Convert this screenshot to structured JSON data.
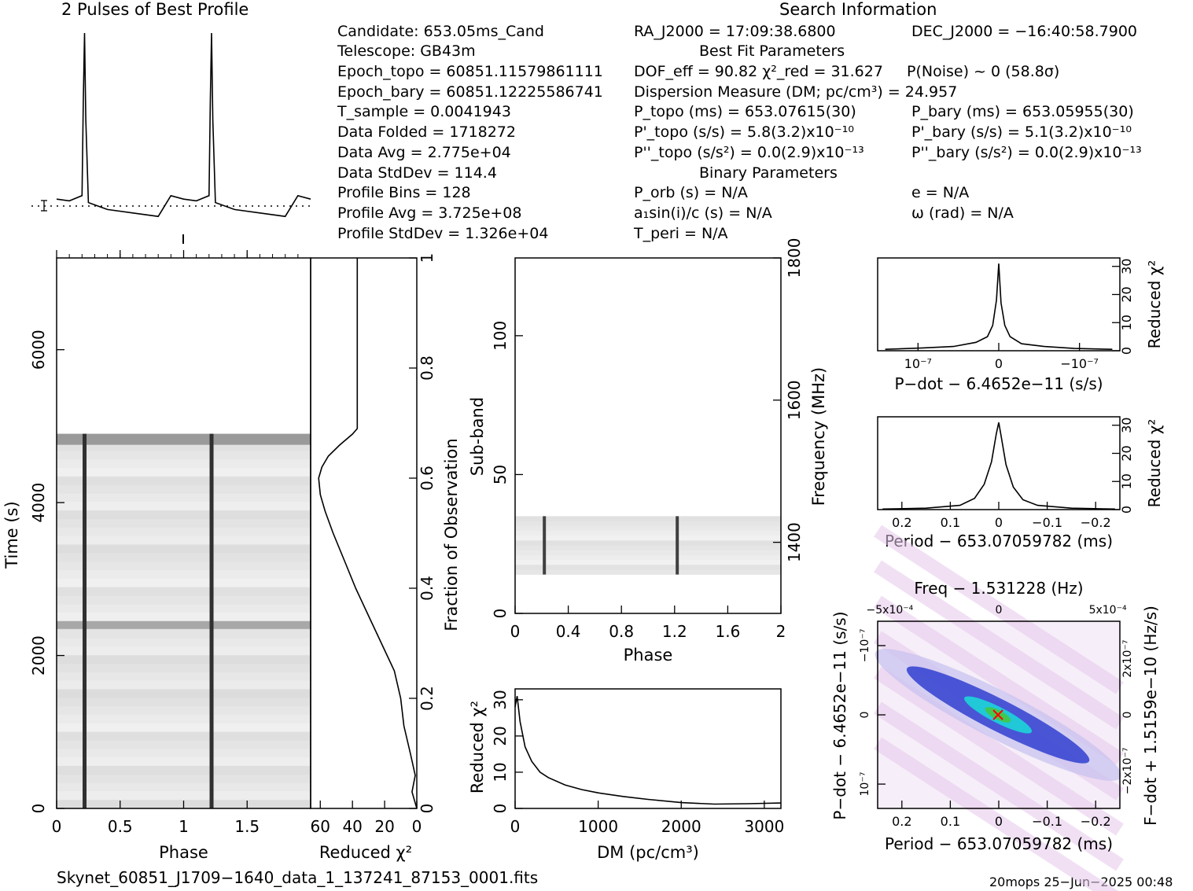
{
  "profile_title": "2 Pulses of Best Profile",
  "search_title": "Search Information",
  "candidate_info": {
    "candidate": "Candidate:  653.05ms_Cand",
    "telescope": "Telescope:  GB43m",
    "epoch_topo": "Epoch_topo = 60851.11579861111",
    "epoch_bary": "Epoch_bary = 60851.12225586741",
    "t_sample": "T_sample   =  0.0041943",
    "data_folded": "Data Folded   =  1718272",
    "data_avg": "Data Avg      =  2.775e+04",
    "data_stddev": "Data StdDev   =  114.4",
    "profile_bins": "Profile Bins  =  128",
    "profile_avg": "Profile Avg   =  3.725e+08",
    "profile_stddev": "Profile StdDev =  1.326e+04"
  },
  "fit_info": {
    "ra": "RA_J2000 = 17:09:38.6800",
    "dec": "DEC_J2000 = −16:40:58.7900",
    "best_fit_header": "Best Fit Parameters",
    "dof": "DOF_eff = 90.82  χ²_red = 31.627",
    "p_noise": "P(Noise) ~ 0   (58.8σ)",
    "dm": "Dispersion Measure (DM; pc/cm³) = 24.957",
    "p_topo": "P_topo (ms) =  653.07615(30)",
    "p_bary": "P_bary (ms) =  653.05955(30)",
    "pd_topo": "P'_topo (s/s) =  5.8(3.2)x10⁻¹⁰",
    "pd_bary": "P'_bary (s/s) =  5.1(3.2)x10⁻¹⁰",
    "pdd_topo": "P''_topo (s/s²) = 0.0(2.9)x10⁻¹³",
    "pdd_bary": "P''_bary (s/s²) = 0.0(2.9)x10⁻¹³",
    "binary_header": "Binary Parameters",
    "p_orb": "P_orb (s) = N/A",
    "e": "e = N/A",
    "a1sini": "a₁sin(i)/c (s) = N/A",
    "omega": "ω (rad) = N/A",
    "t_peri": "T_peri = N/A"
  },
  "footer": {
    "filename": "Skynet_60851_J1709−1640_data_1_137241_87153_0001.fits",
    "stamp": "20mops 25−Jun−2025 00:48"
  },
  "colors": {
    "ink": "#000000",
    "gray_lines": "#333333",
    "map_blue": "#1020c0",
    "map_cyan": "#20d0d0",
    "map_green": "#30c040",
    "marker": "#ff0000"
  },
  "chart_data": [
    {
      "type": "line",
      "name": "profile",
      "title": "2 Pulses of Best Profile",
      "x": [
        0,
        0.1,
        0.2,
        0.21,
        0.22,
        0.23,
        0.25,
        0.4,
        0.6,
        0.8,
        0.9,
        1.0,
        1.1,
        1.2,
        1.21,
        1.22,
        1.23,
        1.25,
        1.4,
        1.6,
        1.8,
        1.9,
        2.0
      ],
      "y": [
        0.04,
        0.03,
        0.06,
        0.6,
        1.0,
        0.5,
        0.02,
        -0.02,
        -0.04,
        -0.06,
        0.06,
        0.04,
        0.03,
        0.06,
        0.6,
        1.0,
        0.5,
        0.02,
        -0.02,
        -0.04,
        -0.06,
        0.06,
        0.04
      ]
    },
    {
      "type": "heatmap",
      "name": "time-phase",
      "xlabel": "Phase",
      "ylabel": "Time (s)",
      "xlim": [
        0,
        2
      ],
      "ylim": [
        0,
        7200
      ],
      "x_ticks": [
        "0",
        "0.5",
        "1",
        "1.5"
      ],
      "y_ticks": [
        "0",
        "2000",
        "4000",
        "6000"
      ],
      "pulse_phases": [
        0.22,
        1.22
      ],
      "data_end_time": 4900
    },
    {
      "type": "line",
      "name": "reduced-chi2-vs-time",
      "xlabel": "Reduced χ²",
      "ylabel": "Fraction of Observation",
      "x_ticks": [
        "60",
        "40",
        "20",
        "0"
      ],
      "y_ticks": [
        "0",
        "0.2",
        "0.4",
        "0.6",
        "0.8",
        "1"
      ],
      "x": [
        0,
        3,
        1,
        4,
        8,
        10,
        14,
        22,
        30,
        38,
        45,
        52,
        57,
        60,
        61,
        59,
        55,
        48,
        40,
        37,
        37
      ],
      "y": [
        0,
        0.03,
        0.06,
        0.1,
        0.15,
        0.2,
        0.25,
        0.3,
        0.35,
        0.4,
        0.45,
        0.5,
        0.54,
        0.57,
        0.6,
        0.62,
        0.64,
        0.66,
        0.68,
        0.69,
        1.0
      ]
    },
    {
      "type": "heatmap",
      "name": "subband-phase",
      "xlabel": "Phase",
      "ylabel": "Sub-band",
      "y2label": "Frequency (MHz)",
      "xlim": [
        0,
        2
      ],
      "ylim": [
        0,
        128
      ],
      "x_ticks": [
        "0",
        "0.4",
        "0.8",
        "1.2",
        "1.6",
        "2"
      ],
      "y_ticks": [
        "0",
        "50",
        "100"
      ],
      "y2_ticks": [
        "1400",
        "1600",
        "1800"
      ],
      "band_range": [
        14,
        35
      ],
      "pulse_phases": [
        0.22,
        1.22
      ]
    },
    {
      "type": "line",
      "name": "reduced-chi2-vs-dm",
      "xlabel": "DM (pc/cm³)",
      "ylabel": "Reduced χ²",
      "x_ticks": [
        "0",
        "1000",
        "2000",
        "3000"
      ],
      "y_ticks": [
        "0",
        "10",
        "20",
        "30"
      ],
      "x": [
        0,
        25,
        60,
        120,
        200,
        300,
        400,
        600,
        800,
        1000,
        1300,
        1600,
        2000,
        2400,
        2800,
        3200
      ],
      "y": [
        28,
        31,
        24,
        17,
        13,
        10,
        8.5,
        6.5,
        5.2,
        4.3,
        3.3,
        2.5,
        1.6,
        1.2,
        1.3,
        1.5
      ]
    },
    {
      "type": "line",
      "name": "reduced-chi2-vs-pdot",
      "xlabel": "P−dot − 6.4652e−11 (s/s)",
      "ylabel": "Reduced χ²",
      "x_ticks": [
        "10⁻⁷",
        "0",
        "−10⁻⁷"
      ],
      "y_ticks": [
        "0",
        "10",
        "20",
        "30"
      ],
      "x": [
        1.5,
        1.0,
        0.6,
        0.3,
        0.15,
        0.08,
        0.03,
        0,
        -0.03,
        -0.08,
        -0.15,
        -0.3,
        -0.6,
        -1.0,
        -1.5
      ],
      "y": [
        0.5,
        1.0,
        1.5,
        3,
        5,
        9,
        18,
        31,
        17,
        9,
        5,
        2.5,
        1.5,
        0.8,
        0.5
      ]
    },
    {
      "type": "line",
      "name": "reduced-chi2-vs-period",
      "xlabel": "Period − 653.07059782 (ms)",
      "ylabel": "Reduced χ²",
      "x_ticks": [
        "0.2",
        "0.1",
        "0",
        "−0.1",
        "−0.2"
      ],
      "y_ticks": [
        "0",
        "10",
        "20",
        "30"
      ],
      "x": [
        0.24,
        0.15,
        0.08,
        0.05,
        0.03,
        0.015,
        0.005,
        0,
        -0.005,
        -0.015,
        -0.03,
        -0.05,
        -0.08,
        -0.15,
        -0.24
      ],
      "y": [
        0.2,
        0.5,
        1.5,
        4,
        9,
        17,
        27,
        31,
        26,
        16,
        8,
        3.5,
        1.5,
        0.5,
        0.2
      ]
    },
    {
      "type": "heatmap",
      "name": "period-pdot-plane",
      "title": "Freq − 1.531228 (Hz)",
      "xlabel": "Period − 653.07059782 (ms)",
      "ylabel": "P−dot − 6.4652e−11 (s/s)",
      "y2label": "F−dot + 1.5159e−10 (Hz/s)",
      "x_ticks": [
        "0.2",
        "0.1",
        "0",
        "−0.1",
        "−0.2"
      ],
      "x2_ticks": [
        "−5x10⁻⁴",
        "0",
        "5x10⁻⁴"
      ],
      "y_ticks": [
        "−10⁻⁷",
        "0",
        "10⁻⁷"
      ],
      "y2_ticks": [
        "2x10⁻⁷",
        "0",
        "−2x10⁻⁷"
      ],
      "best_fit": [
        0,
        0
      ]
    }
  ]
}
